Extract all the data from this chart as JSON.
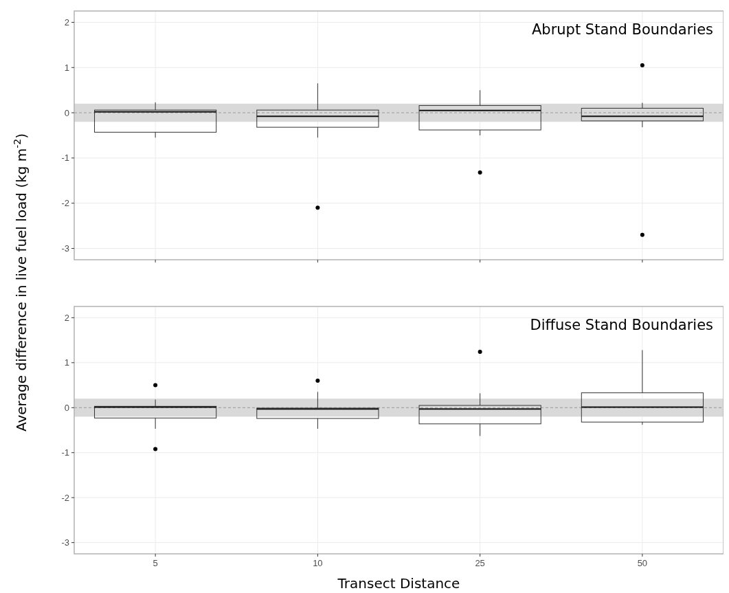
{
  "chart_data": [
    {
      "type": "box",
      "title": "Abrupt Stand Boundaries",
      "ylabel": "Average difference in live fuel load (kg m$^{-2}$)",
      "categories": [
        "5",
        "10",
        "25",
        "50"
      ],
      "ylim": [
        -3.25,
        2.25
      ],
      "yticks": [
        -3,
        -2,
        -1,
        0,
        1,
        2
      ],
      "grid": true,
      "tick_labels": "y",
      "boxes": [
        {
          "low": -0.55,
          "q1": -0.43,
          "median": 0.02,
          "q3": 0.06,
          "high": 0.23
        },
        {
          "low": -0.55,
          "q1": -0.32,
          "median": -0.08,
          "q3": 0.06,
          "high": 0.65,
          "outliers": [
            -2.1
          ]
        },
        {
          "low": -0.5,
          "q1": -0.38,
          "median": 0.05,
          "q3": 0.16,
          "high": 0.5,
          "outliers": [
            -1.32
          ]
        },
        {
          "low": -0.32,
          "q1": -0.18,
          "median": -0.08,
          "q3": 0.1,
          "high": 0.22,
          "outliers": [
            1.05,
            -2.7
          ]
        }
      ],
      "ref_lines": [
        {
          "axis": "y",
          "value": 0,
          "line_style": "dashed",
          "color": "#999999"
        }
      ],
      "bands": [
        {
          "axis": "y",
          "from": -0.2,
          "to": 0.2,
          "color": "#d9d9d9"
        }
      ]
    },
    {
      "type": "box",
      "title": "Diffuse Stand Boundaries",
      "xlabel": "Transect Distance",
      "categories": [
        "5",
        "10",
        "25",
        "50"
      ],
      "ylim": [
        -3.25,
        2.25
      ],
      "yticks": [
        -3,
        -2,
        -1,
        0,
        1,
        2
      ],
      "grid": true,
      "boxes": [
        {
          "low": -0.47,
          "q1": -0.23,
          "median": 0.01,
          "q3": 0.03,
          "high": 0.18,
          "outliers": [
            0.5,
            -0.92
          ]
        },
        {
          "low": -0.47,
          "q1": -0.24,
          "median": -0.03,
          "q3": -0.01,
          "high": 0.35,
          "outliers": [
            0.6
          ]
        },
        {
          "low": -0.63,
          "q1": -0.36,
          "median": -0.03,
          "q3": 0.05,
          "high": 0.32,
          "outliers": [
            1.24
          ]
        },
        {
          "low": -0.38,
          "q1": -0.32,
          "median": 0.01,
          "q3": 0.33,
          "high": 1.28
        }
      ],
      "ref_lines": [
        {
          "axis": "y",
          "value": 0,
          "line_style": "dashed",
          "color": "#999999"
        }
      ],
      "bands": [
        {
          "axis": "y",
          "from": -0.2,
          "to": 0.2,
          "color": "#d9d9d9"
        }
      ]
    }
  ]
}
